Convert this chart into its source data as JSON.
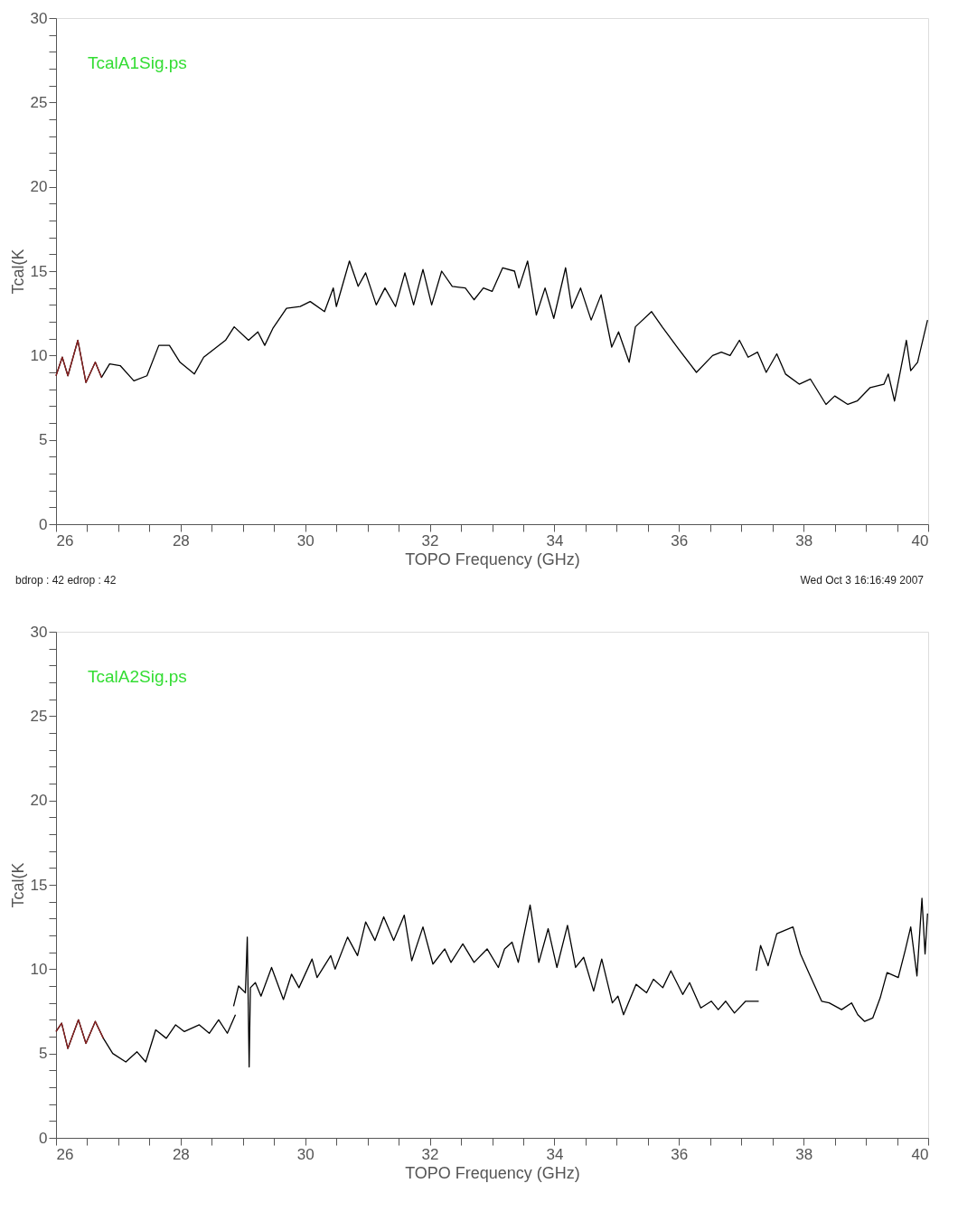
{
  "chart_data": [
    {
      "type": "line",
      "xlabel": "TOPO Frequency (GHz)",
      "ylabel": "Tcal(K",
      "annotations": [
        "TcalA1Sig.ps",
        "bdrop :   42  edrop :   42",
        "Wed Oct  3 16:16:49 2007"
      ],
      "xlim": [
        26,
        40
      ],
      "ylim": [
        0,
        30
      ],
      "xticks": [
        26,
        {
          "value": 26.5,
          "label": null
        },
        {
          "value": 27,
          "label": null
        },
        {
          "value": 27.5,
          "label": null
        },
        28,
        {
          "value": 28.5,
          "label": null
        },
        {
          "value": 29,
          "label": null
        },
        {
          "value": 29.5,
          "label": null
        },
        30,
        {
          "value": 30.5,
          "label": null
        },
        {
          "value": 31,
          "label": null
        },
        {
          "value": 31.5,
          "label": null
        },
        32,
        {
          "value": 32.5,
          "label": null
        },
        {
          "value": 33,
          "label": null
        },
        {
          "value": 33.5,
          "label": null
        },
        34,
        {
          "value": 34.5,
          "label": null
        },
        {
          "value": 35,
          "label": null
        },
        {
          "value": 35.5,
          "label": null
        },
        36,
        {
          "value": 36.5,
          "label": null
        },
        {
          "value": 37,
          "label": null
        },
        {
          "value": 37.5,
          "label": null
        },
        38,
        {
          "value": 38.5,
          "label": null
        },
        {
          "value": 39,
          "label": null
        },
        {
          "value": 39.5,
          "label": null
        },
        40
      ],
      "yticks": [
        0,
        {
          "value": 1,
          "label": null
        },
        {
          "value": 2,
          "label": null
        },
        {
          "value": 3,
          "label": null
        },
        {
          "value": 4,
          "label": null
        },
        5,
        {
          "value": 6,
          "label": null
        },
        {
          "value": 7,
          "label": null
        },
        {
          "value": 8,
          "label": null
        },
        {
          "value": 9,
          "label": null
        },
        10,
        {
          "value": 11,
          "label": null
        },
        {
          "value": 12,
          "label": null
        },
        {
          "value": 13,
          "label": null
        },
        {
          "value": 14,
          "label": null
        },
        15,
        {
          "value": 16,
          "label": null
        },
        {
          "value": 17,
          "label": null
        },
        {
          "value": 18,
          "label": null
        },
        {
          "value": 19,
          "label": null
        },
        20,
        {
          "value": 21,
          "label": null
        },
        {
          "value": 22,
          "label": null
        },
        {
          "value": 23,
          "label": null
        },
        {
          "value": 24,
          "label": null
        },
        25,
        {
          "value": 26,
          "label": null
        },
        {
          "value": 27,
          "label": null
        },
        {
          "value": 28,
          "label": null
        },
        {
          "value": 29,
          "label": null
        },
        30
      ],
      "grid": false,
      "legend": false,
      "series": [
        {
          "color": "#000000",
          "x": [
            26.0,
            26.1,
            26.19,
            26.35,
            26.48,
            26.63,
            26.73,
            26.86,
            27.03,
            27.25,
            27.46,
            27.65,
            27.82,
            27.99,
            28.22,
            28.37,
            28.72,
            28.86,
            29.09,
            29.24,
            29.35,
            29.48,
            29.7,
            29.92,
            30.08,
            30.31,
            30.45,
            30.5,
            30.71,
            30.85,
            30.97,
            31.14,
            31.28,
            31.45,
            31.6,
            31.74,
            31.89,
            32.03,
            32.19,
            32.36,
            32.57,
            32.71,
            32.86,
            33.0,
            33.17,
            33.36,
            33.43,
            33.57,
            33.71,
            33.85,
            33.99,
            34.18,
            34.28,
            34.42,
            34.59,
            34.75,
            34.92,
            35.03,
            35.2,
            35.3,
            35.56,
            35.73,
            35.99,
            36.28,
            36.54,
            36.68,
            36.82,
            36.97,
            37.11,
            37.26,
            37.4,
            37.57,
            37.71,
            37.93,
            38.11,
            38.36,
            38.5,
            38.71,
            38.86,
            39.07,
            39.29,
            39.36,
            39.46,
            39.65,
            39.72,
            39.83,
            39.99
          ],
          "values": [
            8.8,
            9.9,
            8.8,
            10.9,
            8.4,
            9.6,
            8.7,
            9.5,
            9.4,
            8.5,
            8.8,
            10.6,
            10.6,
            9.6,
            8.9,
            9.9,
            10.9,
            11.7,
            10.9,
            11.4,
            10.6,
            11.6,
            12.8,
            12.9,
            13.2,
            12.6,
            14.0,
            12.9,
            15.6,
            14.1,
            14.9,
            13.0,
            14.0,
            12.9,
            14.9,
            13.0,
            15.1,
            13.0,
            15.0,
            14.1,
            14.0,
            13.3,
            14.0,
            13.8,
            15.2,
            15.0,
            14.0,
            15.6,
            12.4,
            14.0,
            12.2,
            15.2,
            12.8,
            14.0,
            12.1,
            13.6,
            10.5,
            11.4,
            9.6,
            11.7,
            12.6,
            11.7,
            10.4,
            9.0,
            10.0,
            10.2,
            10.0,
            10.9,
            9.9,
            10.2,
            9.0,
            10.1,
            8.9,
            8.3,
            8.6,
            7.1,
            7.6,
            7.1,
            7.3,
            8.1,
            8.3,
            8.9,
            7.3,
            10.9,
            9.1,
            9.6,
            12.1
          ]
        },
        {
          "color": "#8b2020",
          "x": [
            26.0,
            26.1,
            26.19,
            26.35,
            26.48,
            26.63,
            26.73
          ],
          "values": [
            8.8,
            9.9,
            8.8,
            10.9,
            8.4,
            9.6,
            8.7
          ]
        }
      ]
    },
    {
      "type": "line",
      "xlabel": "TOPO Frequency (GHz)",
      "ylabel": "Tcal(K",
      "annotations": [
        "TcalA2Sig.ps"
      ],
      "xlim": [
        26,
        40
      ],
      "ylim": [
        0,
        30
      ],
      "xticks": [
        26,
        {
          "value": 26.5,
          "label": null
        },
        {
          "value": 27,
          "label": null
        },
        {
          "value": 27.5,
          "label": null
        },
        28,
        {
          "value": 28.5,
          "label": null
        },
        {
          "value": 29,
          "label": null
        },
        {
          "value": 29.5,
          "label": null
        },
        30,
        {
          "value": 30.5,
          "label": null
        },
        {
          "value": 31,
          "label": null
        },
        {
          "value": 31.5,
          "label": null
        },
        32,
        {
          "value": 32.5,
          "label": null
        },
        {
          "value": 33,
          "label": null
        },
        {
          "value": 33.5,
          "label": null
        },
        34,
        {
          "value": 34.5,
          "label": null
        },
        {
          "value": 35,
          "label": null
        },
        {
          "value": 35.5,
          "label": null
        },
        36,
        {
          "value": 36.5,
          "label": null
        },
        {
          "value": 37,
          "label": null
        },
        {
          "value": 37.5,
          "label": null
        },
        38,
        {
          "value": 38.5,
          "label": null
        },
        {
          "value": 39,
          "label": null
        },
        {
          "value": 39.5,
          "label": null
        },
        40
      ],
      "yticks": [
        0,
        {
          "value": 1,
          "label": null
        },
        {
          "value": 2,
          "label": null
        },
        {
          "value": 3,
          "label": null
        },
        {
          "value": 4,
          "label": null
        },
        5,
        {
          "value": 6,
          "label": null
        },
        {
          "value": 7,
          "label": null
        },
        {
          "value": 8,
          "label": null
        },
        {
          "value": 9,
          "label": null
        },
        10,
        {
          "value": 11,
          "label": null
        },
        {
          "value": 12,
          "label": null
        },
        {
          "value": 13,
          "label": null
        },
        {
          "value": 14,
          "label": null
        },
        15,
        {
          "value": 16,
          "label": null
        },
        {
          "value": 17,
          "label": null
        },
        {
          "value": 18,
          "label": null
        },
        {
          "value": 19,
          "label": null
        },
        20,
        {
          "value": 21,
          "label": null
        },
        {
          "value": 22,
          "label": null
        },
        {
          "value": 23,
          "label": null
        },
        {
          "value": 24,
          "label": null
        },
        25,
        {
          "value": 26,
          "label": null
        },
        {
          "value": 27,
          "label": null
        },
        {
          "value": 28,
          "label": null
        },
        {
          "value": 29,
          "label": null
        },
        30
      ],
      "grid": false,
      "legend": false,
      "series": [
        {
          "color": "#000000",
          "x": [
            26.0,
            26.09,
            26.19,
            26.36,
            26.48,
            26.63,
            26.76,
            26.91,
            27.12,
            27.3,
            27.44,
            27.6,
            27.77,
            27.92,
            28.06,
            28.3,
            28.46,
            28.61,
            28.75,
            28.88,
            null,
            28.85,
            28.93,
            29.04,
            29.07,
            29.1,
            29.12,
            29.2,
            29.29,
            29.46,
            29.65,
            29.78,
            29.9,
            30.11,
            30.19,
            30.41,
            30.48,
            30.68,
            30.84,
            30.97,
            31.12,
            31.26,
            31.42,
            31.59,
            31.71,
            31.89,
            32.05,
            32.24,
            32.34,
            32.53,
            32.71,
            32.92,
            33.1,
            33.2,
            33.32,
            33.42,
            33.61,
            33.75,
            33.9,
            34.04,
            34.21,
            34.34,
            34.47,
            34.63,
            34.76,
            34.93,
            35.02,
            35.11,
            35.31,
            35.48,
            35.59,
            35.74,
            35.87,
            36.06,
            36.17,
            36.35,
            36.52,
            36.63,
            36.75,
            36.89,
            37.07,
            37.28,
            null,
            37.24,
            37.31,
            37.43,
            37.57,
            37.83,
            37.95,
            38.07,
            38.29,
            38.41,
            38.61,
            38.77,
            38.87,
            38.98,
            39.11,
            39.23,
            39.34,
            39.52,
            39.63,
            39.72,
            39.82,
            39.9,
            39.95,
            39.99
          ],
          "values": [
            6.3,
            6.8,
            5.3,
            7.0,
            5.6,
            6.9,
            5.9,
            5.0,
            4.5,
            5.1,
            4.5,
            6.4,
            5.9,
            6.7,
            6.3,
            6.7,
            6.2,
            7.0,
            6.2,
            7.3,
            null,
            7.8,
            9.0,
            8.6,
            11.9,
            4.2,
            8.9,
            9.2,
            8.4,
            10.1,
            8.2,
            9.7,
            8.9,
            10.6,
            9.5,
            10.8,
            10.0,
            11.9,
            10.8,
            12.8,
            11.7,
            13.1,
            11.7,
            13.2,
            10.5,
            12.5,
            10.3,
            11.2,
            10.4,
            11.5,
            10.4,
            11.2,
            10.1,
            11.2,
            11.6,
            10.4,
            13.8,
            10.4,
            12.4,
            10.1,
            12.6,
            10.1,
            10.7,
            8.7,
            10.6,
            8.0,
            8.4,
            7.3,
            9.1,
            8.6,
            9.4,
            8.9,
            9.9,
            8.5,
            9.2,
            7.7,
            8.1,
            7.6,
            8.1,
            7.4,
            8.1,
            8.1,
            null,
            9.9,
            11.4,
            10.2,
            12.1,
            12.5,
            10.9,
            9.9,
            8.1,
            8.0,
            7.6,
            8.0,
            7.3,
            6.9,
            7.1,
            8.3,
            9.8,
            9.5,
            11.1,
            12.5,
            9.6,
            14.2,
            10.9,
            13.3
          ]
        },
        {
          "color": "#8b2020",
          "x": [
            26.0,
            26.09,
            26.19,
            26.36,
            26.48,
            26.63,
            26.76
          ],
          "values": [
            6.3,
            6.8,
            5.3,
            7.0,
            5.6,
            6.9,
            5.9
          ]
        }
      ]
    }
  ]
}
